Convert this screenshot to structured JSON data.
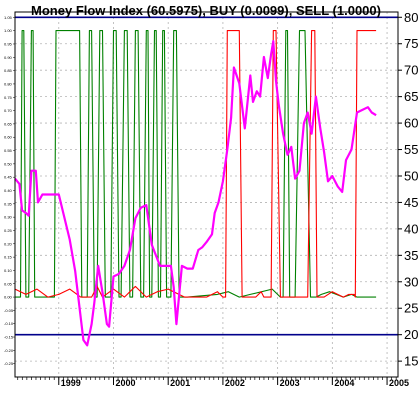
{
  "chart_data": {
    "type": "line",
    "title": "Money Flow Index (60.5975), BUY (0.0099), SELL (1.0000)",
    "xlabel": "",
    "ylabel": "",
    "x_ticks": [
      "1999",
      "2000",
      "2001",
      "2002",
      "2003",
      "2004",
      "2005"
    ],
    "x_range": [
      1998.2,
      2005.2
    ],
    "y_right": {
      "range": [
        12,
        81
      ],
      "ticks": [
        "15",
        "20",
        "25",
        "30",
        "35",
        "40",
        "45",
        "50",
        "55",
        "60",
        "65",
        "70",
        "75",
        "80"
      ]
    },
    "y_left": {
      "range": [
        -0.3,
        1.07
      ],
      "ticks": [
        "1.05",
        "1.00",
        "0.95",
        "0.90",
        "0.85",
        "0.80",
        "0.75",
        "0.70",
        "0.65",
        "0.60",
        "0.55",
        "0.50",
        "0.45",
        "0.40",
        "0.35",
        "0.30",
        "0.25",
        "0.20",
        "0.15",
        "0.10",
        "0.05",
        "0.00",
        "-0.05",
        "-0.10",
        "-0.15",
        "-0.20",
        "-0.25"
      ]
    },
    "reference_lines": [
      {
        "value": 80,
        "axis": "right",
        "color": "#00008b"
      },
      {
        "value": 20,
        "axis": "right",
        "color": "#00008b"
      }
    ],
    "grid": true,
    "series": [
      {
        "axis": "right",
        "color": "#ff00ff",
        "x": [
          1998.2,
          1998.28,
          1998.33,
          1998.4,
          1998.45,
          1998.5,
          1998.58,
          1998.62,
          1998.7,
          1998.8,
          1998.85,
          1999.0,
          1999.2,
          1999.3,
          1999.38,
          1999.45,
          1999.52,
          1999.6,
          1999.65,
          1999.72,
          1999.8,
          1999.88,
          1999.92,
          2000.0,
          2000.1,
          2000.2,
          2000.3,
          2000.4,
          2000.5,
          2000.6,
          2000.7,
          2000.85,
          2000.95,
          2001.05,
          2001.1,
          2001.15,
          2001.25,
          2001.35,
          2001.45,
          2001.55,
          2001.62,
          2001.7,
          2001.8,
          2001.85,
          2001.92,
          2002.0,
          2002.08,
          2002.15,
          2002.2,
          2002.3,
          2002.4,
          2002.5,
          2002.55,
          2002.62,
          2002.68,
          2002.75,
          2002.82,
          2002.88,
          2002.92,
          2002.97,
          2003.02,
          2003.1,
          2003.18,
          2003.25,
          2003.32,
          2003.4,
          2003.48,
          2003.55,
          2003.62,
          2003.7,
          2003.78,
          2003.85,
          2003.92,
          2004.0,
          2004.1,
          2004.18,
          2004.25,
          2004.35,
          2004.45,
          2004.55,
          2004.65,
          2004.72,
          2004.8
        ],
        "y": [
          49.5,
          48.5,
          43.5,
          43.0,
          42.5,
          51.0,
          51.0,
          45.0,
          46.5,
          46.5,
          46.5,
          46.5,
          38.0,
          32.0,
          25.0,
          19.0,
          18.0,
          22.0,
          26.0,
          33.0,
          28.0,
          22.0,
          21.5,
          31.0,
          31.5,
          33.0,
          36.0,
          42.0,
          44.0,
          44.5,
          37.0,
          33.0,
          33.0,
          33.0,
          29.0,
          22.0,
          33.0,
          32.5,
          32.5,
          36.0,
          36.5,
          37.5,
          39.0,
          43.0,
          45.0,
          49.0,
          55.0,
          61.0,
          70.5,
          67.5,
          59.0,
          69.0,
          64.0,
          66.0,
          65.0,
          72.5,
          68.5,
          73.0,
          75.5,
          68.0,
          63.5,
          58.0,
          54.0,
          55.5,
          49.5,
          51.0,
          60.0,
          62.0,
          58.0,
          65.0,
          59.0,
          54.5,
          49.0,
          50.0,
          48.0,
          47.0,
          53.0,
          55.0,
          62.0,
          62.5,
          63.0,
          62.0,
          61.5
        ]
      },
      {
        "axis": "left",
        "color": "#008000",
        "x": [
          1998.2,
          1998.3,
          1998.33,
          1998.36,
          1998.4,
          1998.45,
          1998.5,
          1998.53,
          1998.56,
          1998.92,
          1998.95,
          1999.0,
          1999.38,
          1999.42,
          1999.45,
          1999.52,
          1999.56,
          1999.6,
          1999.65,
          1999.7,
          1999.75,
          1999.8,
          1999.85,
          1999.95,
          2000.0,
          2000.05,
          2000.1,
          2000.14,
          2000.2,
          2000.25,
          2000.3,
          2000.35,
          2000.4,
          2000.45,
          2000.5,
          2000.55,
          2000.6,
          2000.63,
          2000.66,
          2000.7,
          2000.75,
          2000.78,
          2000.82,
          2000.86,
          2000.9,
          2000.93,
          2000.97,
          2001.0,
          2001.05,
          2001.1,
          2001.15,
          2001.2,
          2001.25,
          2001.3,
          2001.35,
          2001.9,
          2002.1,
          2002.3,
          2002.5,
          2002.9,
          2003.05,
          2003.1,
          2003.15,
          2003.18,
          2003.22,
          2003.26,
          2003.32,
          2003.4,
          2003.5,
          2003.6,
          2003.65,
          2003.7,
          2003.8,
          2003.95,
          2004.2,
          2004.35,
          2004.45,
          2004.6,
          2004.8
        ],
        "y": [
          0.0,
          0.0,
          1.0,
          1.0,
          0.0,
          0.0,
          1.0,
          1.0,
          0.0,
          0.0,
          1.0,
          1.0,
          1.0,
          0.0,
          0.0,
          0.0,
          1.0,
          1.0,
          0.0,
          0.0,
          1.0,
          1.0,
          0.0,
          0.0,
          1.0,
          1.0,
          0.0,
          0.0,
          1.0,
          1.0,
          0.0,
          0.0,
          1.0,
          1.0,
          0.0,
          0.0,
          1.0,
          1.0,
          0.0,
          0.0,
          1.0,
          1.0,
          0.0,
          0.0,
          1.0,
          1.0,
          0.0,
          0.0,
          0.0,
          1.0,
          1.0,
          0.0,
          0.0,
          0.0,
          0.0,
          0.01,
          0.02,
          0.0,
          0.01,
          0.03,
          0.0,
          0.0,
          1.0,
          1.0,
          0.0,
          0.0,
          0.0,
          1.0,
          1.0,
          0.0,
          0.0,
          0.0,
          0.01,
          0.02,
          0.0,
          0.01,
          0.0,
          0.0,
          0.0
        ]
      },
      {
        "axis": "left",
        "color": "#ff0000",
        "x": [
          1998.2,
          1998.4,
          1998.6,
          1998.8,
          1999.0,
          1999.2,
          1999.4,
          1999.6,
          1999.7,
          1999.8,
          2000.0,
          2000.2,
          2000.4,
          2000.6,
          2000.8,
          2001.0,
          2001.3,
          2001.5,
          2001.7,
          2001.9,
          2002.0,
          2002.05,
          2002.08,
          2002.3,
          2002.35,
          2002.4,
          2002.6,
          2002.7,
          2002.75,
          2002.8,
          2002.88,
          2002.92,
          2002.97,
          2003.05,
          2003.5,
          2003.55,
          2003.62,
          2003.68,
          2003.72,
          2003.85,
          2004.0,
          2004.2,
          2004.3,
          2004.4,
          2004.42,
          2004.45,
          2004.8
        ],
        "y": [
          0.03,
          0.01,
          0.03,
          0.0,
          0.01,
          0.03,
          0.0,
          0.0,
          0.04,
          0.0,
          0.03,
          0.0,
          0.04,
          0.0,
          0.02,
          0.03,
          0.0,
          0.0,
          0.0,
          0.02,
          0.0,
          0.0,
          1.0,
          1.0,
          0.0,
          0.0,
          0.0,
          0.02,
          0.0,
          0.0,
          0.0,
          1.0,
          1.0,
          0.0,
          0.0,
          0.0,
          1.0,
          1.0,
          0.0,
          0.0,
          0.02,
          0.0,
          0.01,
          0.01,
          0.0,
          1.0,
          1.0
        ]
      }
    ]
  }
}
